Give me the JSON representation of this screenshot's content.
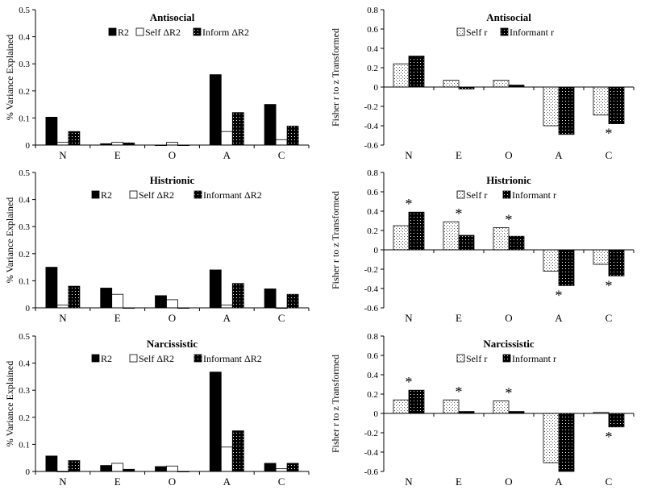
{
  "colors": {
    "black": "#000000",
    "white": "#ffffff",
    "dot": "#000000"
  },
  "chart_data": [
    {
      "id": "antisocial_variance",
      "type": "bar",
      "title": "Antisocial",
      "ylabel": "% Variance Explained",
      "ylim": [
        0,
        0.5
      ],
      "yticks": [
        "0",
        "0.1",
        "0.2",
        "0.3",
        "0.4",
        "0.5"
      ],
      "categories": [
        "N",
        "E",
        "O",
        "A",
        "C"
      ],
      "series": [
        {
          "name": "R2",
          "pattern": "black",
          "values": [
            0.103,
            0.005,
            0,
            0.26,
            0.15
          ]
        },
        {
          "name": "Self ΔR2",
          "pattern": "white",
          "values": [
            0.01,
            0.01,
            0.01,
            0.05,
            0.02
          ]
        },
        {
          "name": "Inform ΔR2",
          "pattern": "dark",
          "values": [
            0.05,
            0.008,
            0,
            0.12,
            0.07
          ]
        }
      ],
      "stars": []
    },
    {
      "id": "antisocial_fisher",
      "type": "bar",
      "title": "Antisocial",
      "ylabel": "Fisher r to z Transformed",
      "ylim": [
        -0.6,
        0.8
      ],
      "yticks": [
        "-0.6",
        "-0.4",
        "-0.2",
        "0",
        "0.2",
        "0.4",
        "0.6",
        "0.8"
      ],
      "categories": [
        "N",
        "E",
        "O",
        "A",
        "C"
      ],
      "series": [
        {
          "name": "Self r",
          "pattern": "dotted",
          "values": [
            0.24,
            0.07,
            0.07,
            -0.4,
            -0.29
          ]
        },
        {
          "name": "Informant r",
          "pattern": "dark",
          "values": [
            0.32,
            -0.02,
            0.02,
            -0.49,
            -0.38
          ]
        }
      ],
      "stars": [
        {
          "category": "C",
          "position": "below",
          "symbol": "*"
        }
      ]
    },
    {
      "id": "histrionic_variance",
      "type": "bar",
      "title": "Histrionic",
      "ylabel": "% Variance Explained",
      "ylim": [
        0,
        0.5
      ],
      "yticks": [
        "0",
        "0.1",
        "0.2",
        "0.3",
        "0.4",
        "0.5"
      ],
      "categories": [
        "N",
        "E",
        "O",
        "A",
        "C"
      ],
      "series": [
        {
          "name": "R2",
          "pattern": "black",
          "values": [
            0.15,
            0.073,
            0.045,
            0.14,
            0.07
          ]
        },
        {
          "name": "Self ΔR2",
          "pattern": "white",
          "values": [
            0.01,
            0.05,
            0.03,
            0.01,
            0
          ]
        },
        {
          "name": "Informant ΔR2",
          "pattern": "dark",
          "values": [
            0.08,
            0,
            0,
            0.09,
            0.05
          ]
        }
      ],
      "stars": []
    },
    {
      "id": "histrionic_fisher",
      "type": "bar",
      "title": "Histrionic",
      "ylabel": "Fisher r to z Transformed",
      "ylim": [
        -0.6,
        0.8
      ],
      "yticks": [
        "-0.6",
        "-0.4",
        "-0.2",
        "0",
        "0.2",
        "0.4",
        "0.6",
        "0.8"
      ],
      "categories": [
        "N",
        "E",
        "O",
        "A",
        "C"
      ],
      "series": [
        {
          "name": "Self r",
          "pattern": "dotted",
          "values": [
            0.25,
            0.29,
            0.23,
            -0.22,
            -0.15
          ]
        },
        {
          "name": "Informant r",
          "pattern": "dark",
          "values": [
            0.39,
            0.15,
            0.14,
            -0.37,
            -0.27
          ]
        }
      ],
      "stars": [
        {
          "category": "N",
          "position": "above",
          "symbol": "*"
        },
        {
          "category": "E",
          "position": "above",
          "symbol": "*"
        },
        {
          "category": "O",
          "position": "above",
          "symbol": "*"
        },
        {
          "category": "A",
          "position": "below",
          "symbol": "*"
        },
        {
          "category": "C",
          "position": "below",
          "symbol": "*"
        }
      ]
    },
    {
      "id": "narcissistic_variance",
      "type": "bar",
      "title": "Narcissistic",
      "ylabel": "% Variance Explained",
      "ylim": [
        0,
        0.5
      ],
      "yticks": [
        "0",
        "0.1",
        "0.2",
        "0.3",
        "0.4",
        "0.5"
      ],
      "categories": [
        "N",
        "E",
        "O",
        "A",
        "C"
      ],
      "series": [
        {
          "name": "R2",
          "pattern": "black",
          "values": [
            0.057,
            0.022,
            0.018,
            0.367,
            0.03
          ]
        },
        {
          "name": "Self ΔR2",
          "pattern": "white",
          "values": [
            0,
            0.03,
            0.02,
            0.09,
            0.01
          ]
        },
        {
          "name": "Informant ΔR2",
          "pattern": "dark",
          "values": [
            0.04,
            0.008,
            0,
            0.15,
            0.03
          ]
        }
      ],
      "stars": []
    },
    {
      "id": "narcissistic_fisher",
      "type": "bar",
      "title": "Narcissistic",
      "ylabel": "Fisher r to z Transformed",
      "ylim": [
        -0.6,
        0.8
      ],
      "yticks": [
        "-0.6",
        "-0.4",
        "-0.2",
        "0",
        "0.2",
        "0.4",
        "0.6",
        "0.8"
      ],
      "categories": [
        "N",
        "E",
        "O",
        "A",
        "C"
      ],
      "series": [
        {
          "name": "Self r",
          "pattern": "dotted",
          "values": [
            0.14,
            0.14,
            0.13,
            -0.51,
            0.01
          ]
        },
        {
          "name": "Informant r",
          "pattern": "dark",
          "values": [
            0.24,
            0.02,
            0.02,
            -0.6,
            -0.14
          ]
        }
      ],
      "stars": [
        {
          "category": "N",
          "position": "above",
          "symbol": "*"
        },
        {
          "category": "E",
          "position": "above",
          "symbol": "*"
        },
        {
          "category": "O",
          "position": "above",
          "symbol": "*"
        },
        {
          "category": "C",
          "position": "below",
          "symbol": "*"
        }
      ]
    }
  ]
}
